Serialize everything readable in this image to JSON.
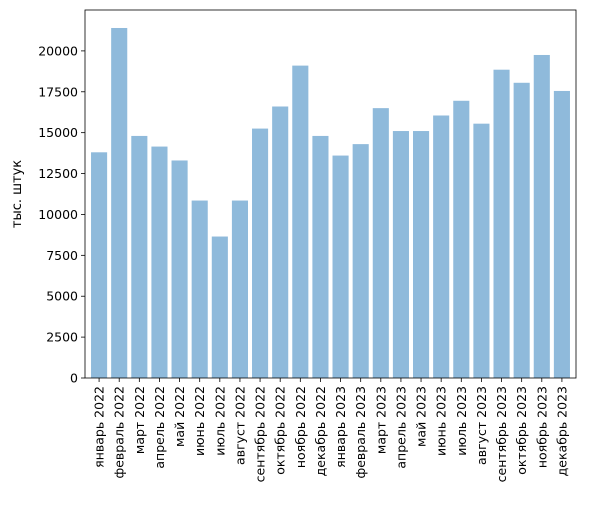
{
  "chart_data": {
    "type": "bar",
    "ylabel": "тыс. штук",
    "xlabel": "",
    "title": "",
    "ylim": [
      0,
      22500
    ],
    "yticks": [
      0,
      2500,
      5000,
      7500,
      10000,
      12500,
      15000,
      17500,
      20000
    ],
    "grid": false,
    "bar_color": "#8fbadb",
    "categories": [
      "январь 2022",
      "февраль 2022",
      "март 2022",
      "апрель 2022",
      "май 2022",
      "июнь 2022",
      "июль 2022",
      "август 2022",
      "сентябрь 2022",
      "октябрь 2022",
      "ноябрь 2022",
      "декабрь 2022",
      "январь 2023",
      "февраль 2023",
      "март 2023",
      "апрель 2023",
      "май 2023",
      "июнь 2023",
      "июль 2023",
      "август 2023",
      "сентябрь 2023",
      "октябрь 2023",
      "ноябрь 2023",
      "декабрь 2023"
    ],
    "values": [
      13800,
      21400,
      14800,
      14150,
      13300,
      10850,
      8650,
      10850,
      15250,
      16600,
      19100,
      14800,
      13600,
      14300,
      16500,
      15100,
      15100,
      16050,
      16950,
      15550,
      18850,
      18050,
      19750,
      17550
    ]
  }
}
